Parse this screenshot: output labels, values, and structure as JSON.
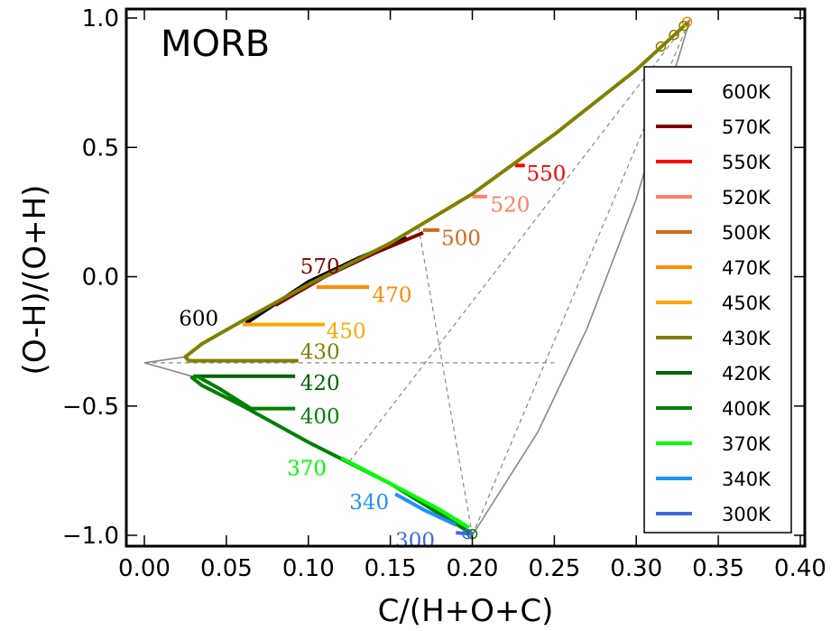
{
  "chart_data": {
    "type": "line",
    "title": "MORB",
    "xlabel": "C/(H+O+C)",
    "ylabel": "(O-H)/(O+H)",
    "xlim": [
      0.0,
      0.4
    ],
    "ylim": [
      -1.05,
      1.02
    ],
    "xticks": [
      0.0,
      0.05,
      0.1,
      0.15,
      0.2,
      0.25,
      0.3,
      0.35,
      0.4
    ],
    "xtick_labels": [
      "0.00",
      "0.05",
      "0.10",
      "0.15",
      "0.20",
      "0.25",
      "0.30",
      "0.35",
      "0.40"
    ],
    "yticks": [
      1.0,
      0.5,
      0.0,
      -0.5,
      -1.0
    ],
    "ytick_labels": [
      "1.0",
      "0.5",
      "0.0",
      "−0.5",
      "−1.0"
    ],
    "legend_position": "right",
    "series": [
      {
        "name": "600K",
        "color": "#000000",
        "label": "600",
        "label_x": 0.021,
        "label_y": -0.16,
        "points": [
          [
            0.062,
            -0.18
          ],
          [
            0.1,
            -0.02
          ],
          [
            0.13,
            0.07
          ],
          [
            0.16,
            0.15
          ]
        ]
      },
      {
        "name": "570K",
        "color": "#7f0000",
        "label": "570",
        "label_x": 0.095,
        "label_y": 0.04,
        "points": [
          [
            0.08,
            -0.11
          ],
          [
            0.11,
            0.0
          ],
          [
            0.14,
            0.09
          ],
          [
            0.17,
            0.17
          ]
        ]
      },
      {
        "name": "550K",
        "color": "#ff0000",
        "label": "550",
        "label_x": 0.233,
        "label_y": 0.4,
        "points": [
          [
            0.226,
            0.43
          ],
          [
            0.232,
            0.43
          ]
        ]
      },
      {
        "name": "520K",
        "color": "#ff8060",
        "label": "520",
        "label_x": 0.211,
        "label_y": 0.28,
        "points": [
          [
            0.2,
            0.31
          ],
          [
            0.209,
            0.31
          ]
        ]
      },
      {
        "name": "500K",
        "color": "#d2691e",
        "label": "500",
        "label_x": 0.181,
        "label_y": 0.15,
        "points": [
          [
            0.17,
            0.18
          ],
          [
            0.18,
            0.18
          ]
        ]
      },
      {
        "name": "470K",
        "color": "#ff8c00",
        "label": "470",
        "label_x": 0.139,
        "label_y": -0.07,
        "points": [
          [
            0.105,
            -0.04
          ],
          [
            0.137,
            -0.04
          ]
        ]
      },
      {
        "name": "450K",
        "color": "#ffa500",
        "label": "450",
        "label_x": 0.111,
        "label_y": -0.21,
        "points": [
          [
            0.06,
            -0.185
          ],
          [
            0.11,
            -0.185
          ]
        ]
      },
      {
        "name": "430K",
        "color": "#808000",
        "label": "430",
        "label_x": 0.095,
        "label_y": -0.29,
        "points": [
          [
            0.331,
            0.98
          ],
          [
            0.3,
            0.8
          ],
          [
            0.25,
            0.55
          ],
          [
            0.2,
            0.32
          ],
          [
            0.15,
            0.13
          ],
          [
            0.1,
            -0.03
          ],
          [
            0.06,
            -0.17
          ],
          [
            0.035,
            -0.26
          ],
          [
            0.025,
            -0.31
          ],
          [
            0.027,
            -0.325
          ],
          [
            0.094,
            -0.325
          ]
        ]
      },
      {
        "name": "420K",
        "color": "#006400",
        "label": "420",
        "label_x": 0.095,
        "label_y": -0.41,
        "points": [
          [
            0.03,
            -0.385
          ],
          [
            0.092,
            -0.385
          ]
        ]
      },
      {
        "name": "400K",
        "color": "#008000",
        "label": "400",
        "label_x": 0.095,
        "label_y": -0.54,
        "points": [
          [
            0.2,
            -0.995
          ],
          [
            0.15,
            -0.8
          ],
          [
            0.1,
            -0.64
          ],
          [
            0.06,
            -0.5
          ],
          [
            0.035,
            -0.42
          ],
          [
            0.029,
            -0.39
          ],
          [
            0.032,
            -0.385
          ],
          [
            0.045,
            -0.43
          ],
          [
            0.065,
            -0.51
          ],
          [
            0.092,
            -0.51
          ]
        ]
      },
      {
        "name": "370K",
        "color": "#00ff00",
        "label": "370",
        "label_x": 0.087,
        "label_y": -0.74,
        "points": [
          [
            0.12,
            -0.7
          ],
          [
            0.15,
            -0.8
          ],
          [
            0.18,
            -0.9
          ],
          [
            0.198,
            -0.97
          ]
        ]
      },
      {
        "name": "340K",
        "color": "#1e90ff",
        "label": "340",
        "label_x": 0.125,
        "label_y": -0.87,
        "points": [
          [
            0.153,
            -0.84
          ],
          [
            0.17,
            -0.9
          ],
          [
            0.19,
            -0.96
          ]
        ]
      },
      {
        "name": "300K",
        "color": "#4169e1",
        "label": "300",
        "label_x": 0.153,
        "label_y": -1.02,
        "points": [
          [
            0.19,
            -0.99
          ],
          [
            0.2,
            -0.995
          ]
        ]
      }
    ],
    "reference_lines": {
      "solid": [
        [
          [
            0.0,
            -0.333
          ],
          [
            0.029,
            -0.385
          ]
        ],
        [
          [
            0.0,
            -0.333
          ],
          [
            0.025,
            -0.31
          ]
        ],
        [
          [
            0.2,
            -1.0
          ],
          [
            0.24,
            -0.6
          ],
          [
            0.27,
            -0.2
          ],
          [
            0.3,
            0.3
          ],
          [
            0.333,
            1.0
          ]
        ]
      ],
      "dashed": [
        [
          [
            0.0,
            -0.333
          ],
          [
            0.25,
            -0.333
          ]
        ],
        [
          [
            0.2,
            -1.0
          ],
          [
            0.333,
            1.0
          ]
        ],
        [
          [
            0.2,
            -1.0
          ],
          [
            0.167,
            0.2
          ]
        ],
        [
          [
            0.125,
            -0.714
          ],
          [
            0.333,
            1.0
          ]
        ]
      ]
    },
    "markers": [
      {
        "x": 0.331,
        "y": 0.985,
        "color": "#ff8c00"
      },
      {
        "x": 0.329,
        "y": 0.97,
        "color": "#808000"
      },
      {
        "x": 0.323,
        "y": 0.935,
        "color": "#808000"
      },
      {
        "x": 0.315,
        "y": 0.89,
        "color": "#808000"
      },
      {
        "x": 0.2,
        "y": -0.995,
        "color": "#008000"
      },
      {
        "x": 0.197,
        "y": -0.995,
        "color": "#4169e1"
      }
    ]
  }
}
